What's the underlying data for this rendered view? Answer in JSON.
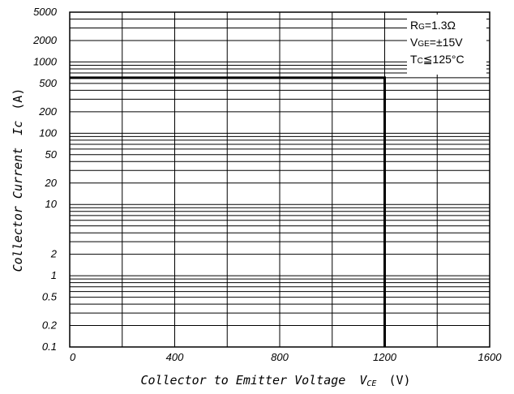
{
  "chart_data": {
    "type": "line",
    "x_scale": "linear",
    "y_scale": "log",
    "xlim": [
      0,
      1600
    ],
    "ylim": [
      0.1,
      5000
    ],
    "x_ticks": [
      0,
      400,
      800,
      1200,
      1600
    ],
    "x_tick_labels": [
      "0",
      "400",
      "800",
      "1200",
      "1600"
    ],
    "y_ticks": [
      0.1,
      0.2,
      0.5,
      1,
      2,
      10,
      20,
      50,
      100,
      200,
      500,
      1000,
      2000,
      5000
    ],
    "y_tick_labels": [
      "0.1",
      "0.2",
      "0.5",
      "1",
      "2",
      "10",
      "20",
      "50",
      "100",
      "200",
      "500",
      "1000",
      "2000",
      "5000"
    ],
    "x_grid": [
      200,
      400,
      600,
      800,
      1000,
      1200,
      1400
    ],
    "grid": true,
    "series": [
      {
        "x": [
          0,
          1200,
          1200
        ],
        "y": [
          600,
          600,
          0.1
        ]
      }
    ],
    "xlabel": {
      "text": "Collector to Emitter Voltage",
      "symbol": "V",
      "subscript": "CE",
      "unit": "(V)"
    },
    "ylabel": {
      "text": "Collector Current",
      "symbol": "Ic",
      "unit": "(A)"
    },
    "legend_position": "top-right",
    "annotations": [
      {
        "main": "R",
        "sub": "G",
        "rest": "=1.3Ω"
      },
      {
        "main": "V",
        "sub": "GE",
        "rest": "=±15V"
      },
      {
        "main": "T",
        "sub": "C",
        "rest": "≦125°C"
      }
    ]
  }
}
